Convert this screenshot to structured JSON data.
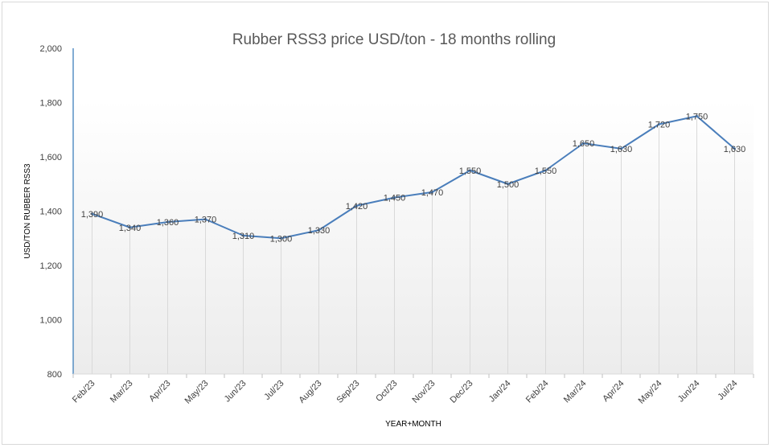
{
  "chart_data": {
    "type": "line",
    "title": "Rubber RSS3 price USD/ton   - 18 months rolling",
    "xlabel": "YEAR+MONTH",
    "ylabel": "USD/TON RUBBER RSS3",
    "ylim": [
      800,
      2000
    ],
    "yticks": [
      800,
      1000,
      1200,
      1400,
      1600,
      1800,
      2000
    ],
    "categories": [
      "Feb/23",
      "Mar/23",
      "Apr/23",
      "May/23",
      "Jun/23",
      "Jul/23",
      "Aug/23",
      "Sep/23",
      "Oct/23",
      "Nov/23",
      "Dec/23",
      "Jan/24",
      "Feb/24",
      "Mar/24",
      "Apr/24",
      "May/24",
      "Jun/24",
      "Jul/24"
    ],
    "values": [
      1390,
      1340,
      1360,
      1370,
      1310,
      1300,
      1330,
      1420,
      1450,
      1470,
      1550,
      1500,
      1550,
      1650,
      1630,
      1720,
      1750,
      1630
    ],
    "data_labels": [
      "1,390",
      "1,340",
      "1,360",
      "1,370",
      "1,310",
      "1,300",
      "1,330",
      "1,420",
      "1,450",
      "1,470",
      "1,550",
      "1,500",
      "1,550",
      "1,650",
      "1,630",
      "1,720",
      "1,750",
      "1,630"
    ],
    "grid": false,
    "drop_lines": true,
    "legend": "none",
    "colors": {
      "line": "#4a7ebb",
      "axis": "#2e75b6",
      "drop_line": "#d9d9d9",
      "background_gradient": "#eeeeee"
    }
  }
}
